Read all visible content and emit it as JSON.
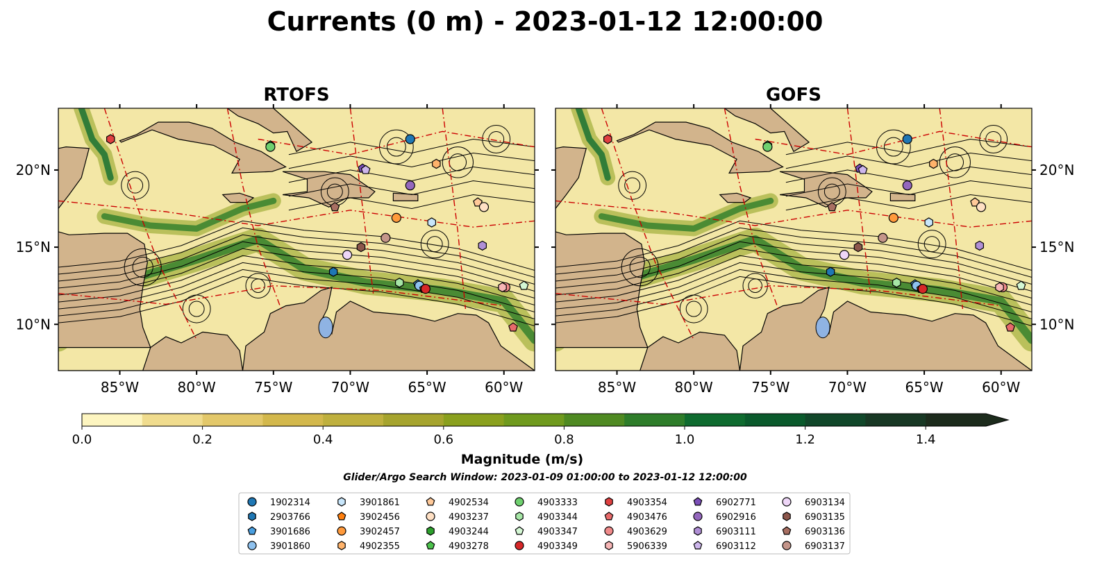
{
  "figure": {
    "title": "Currents (0 m) - 2023-01-12 12:00:00",
    "search_window": "Glider/Argo Search Window: 2023-01-09 01:00:00 to 2023-01-12 12:00:00",
    "land_color": "#d2b48c",
    "ocean_color": "#f3e7a6",
    "current_color": "#6f9a2a",
    "contour_color": "#cc0000"
  },
  "chart_data": {
    "type": "map",
    "panels": [
      {
        "title": "RTOFS"
      },
      {
        "title": "GOFS"
      }
    ],
    "lon_range": [
      -89,
      -58
    ],
    "lat_range": [
      7,
      24
    ],
    "x_ticks": [
      "85°W",
      "80°W",
      "75°W",
      "70°W",
      "65°W",
      "60°W"
    ],
    "x_tick_values": [
      -85,
      -80,
      -75,
      -70,
      -65,
      -60
    ],
    "y_ticks": [
      "20°N",
      "15°N",
      "10°N"
    ],
    "y_tick_values": [
      20,
      15,
      10
    ],
    "colorbar": {
      "label": "Magnitude (m/s)",
      "range": [
        0.0,
        1.5
      ],
      "ticks": [
        "0.0",
        "0.2",
        "0.4",
        "0.6",
        "0.8",
        "1.0",
        "1.2",
        "1.4"
      ],
      "tick_values": [
        0.0,
        0.2,
        0.4,
        0.6,
        0.8,
        1.0,
        1.2,
        1.4
      ],
      "colors": [
        "#fdf5c0",
        "#f0dc8e",
        "#e3c86a",
        "#d3b84c",
        "#bfb03e",
        "#a6a42e",
        "#8aa01e",
        "#6f9a1e",
        "#4f8a22",
        "#2e7d2a",
        "#0f6b2f",
        "#0a5a2c",
        "#11472a",
        "#183824",
        "#1c2b1c"
      ],
      "extend": "max"
    },
    "floats": [
      {
        "id": "1902314",
        "marker": "circle",
        "color": "#1f77b4",
        "lon": -66.1,
        "lat": 22.0
      },
      {
        "id": "2903766",
        "marker": "hexagon",
        "color": "#1f77b4",
        "lon": -71.1,
        "lat": 13.4
      },
      {
        "id": "3901686",
        "marker": "pentagon",
        "color": "#4a9fe0",
        "lon": -65.6,
        "lat": 12.6
      },
      {
        "id": "3901860",
        "marker": "circle",
        "color": "#8ec1ee",
        "lon": -65.5,
        "lat": 12.5
      },
      {
        "id": "3901861",
        "marker": "hexagon",
        "color": "#c8e6fb",
        "lon": -64.7,
        "lat": 16.6
      },
      {
        "id": "3902456",
        "marker": "pentagon",
        "color": "#ff7f0e",
        "lon": -65.2,
        "lat": 12.3
      },
      {
        "id": "3902457",
        "marker": "circle",
        "color": "#ff9a3c",
        "lon": -67.0,
        "lat": 16.9
      },
      {
        "id": "4902355",
        "marker": "hexagon",
        "color": "#ffb36b",
        "lon": -64.4,
        "lat": 20.4
      },
      {
        "id": "4902534",
        "marker": "pentagon",
        "color": "#ffc999",
        "lon": -61.7,
        "lat": 17.9
      },
      {
        "id": "4903237",
        "marker": "circle",
        "color": "#ffe0c4",
        "lon": -61.3,
        "lat": 17.6
      },
      {
        "id": "4903244",
        "marker": "hexagon",
        "color": "#2ca02c",
        "lon": -66.8,
        "lat": 12.7
      },
      {
        "id": "4903278",
        "marker": "pentagon",
        "color": "#4cc24c",
        "lon": -75.2,
        "lat": 21.6
      },
      {
        "id": "4903333",
        "marker": "circle",
        "color": "#6fd06f",
        "lon": -75.2,
        "lat": 21.5
      },
      {
        "id": "4903344",
        "marker": "hexagon",
        "color": "#a6e6a6",
        "lon": -66.8,
        "lat": 12.7
      },
      {
        "id": "4903347",
        "marker": "pentagon",
        "color": "#d4f7d4",
        "lon": -58.7,
        "lat": 12.5
      },
      {
        "id": "4903349",
        "marker": "circle",
        "color": "#d62728",
        "lon": -65.1,
        "lat": 12.3
      },
      {
        "id": "4903354",
        "marker": "hexagon",
        "color": "#e04040",
        "lon": -85.6,
        "lat": 22.0
      },
      {
        "id": "4903476",
        "marker": "pentagon",
        "color": "#e86a6a",
        "lon": -59.4,
        "lat": 9.8
      },
      {
        "id": "4903629",
        "marker": "circle",
        "color": "#f08a8a",
        "lon": -59.9,
        "lat": 12.4
      },
      {
        "id": "5906339",
        "marker": "hexagon",
        "color": "#f7b6b6",
        "lon": -60.1,
        "lat": 12.4
      },
      {
        "id": "6902771",
        "marker": "pentagon",
        "color": "#7b4fb8",
        "lon": -69.2,
        "lat": 20.1
      },
      {
        "id": "6902916",
        "marker": "circle",
        "color": "#9467bd",
        "lon": -66.1,
        "lat": 19.0
      },
      {
        "id": "6903111",
        "marker": "hexagon",
        "color": "#b08fd6",
        "lon": -61.4,
        "lat": 15.1
      },
      {
        "id": "6903112",
        "marker": "pentagon",
        "color": "#cdb6ec",
        "lon": -69.0,
        "lat": 20.0
      },
      {
        "id": "6903134",
        "marker": "circle",
        "color": "#eed6f7",
        "lon": -70.2,
        "lat": 14.5
      },
      {
        "id": "6903135",
        "marker": "hexagon",
        "color": "#8c564b",
        "lon": -69.3,
        "lat": 15.0
      },
      {
        "id": "6903136",
        "marker": "pentagon",
        "color": "#a86f62",
        "lon": -71.0,
        "lat": 17.6
      },
      {
        "id": "6903137",
        "marker": "circle",
        "color": "#c4958a",
        "lon": -67.7,
        "lat": 15.6
      }
    ]
  }
}
